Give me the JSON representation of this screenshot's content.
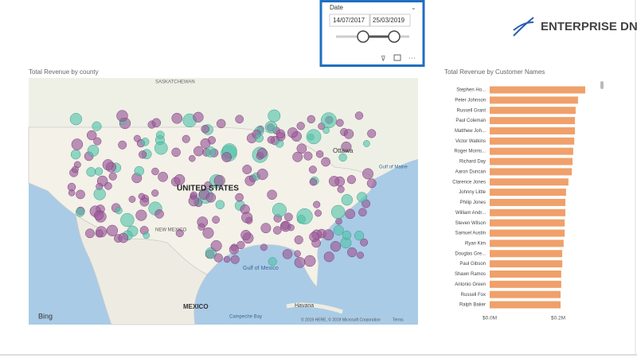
{
  "slicer": {
    "title": "Date",
    "start": "14/07/2017",
    "end": "25/03/2019"
  },
  "logo": "ENTERPRISE DNA",
  "map": {
    "title": "Total Revenue by county",
    "labels": [
      "SASKATCHEWAN",
      "Ottawa",
      "UNITED STATES",
      "NEW MEXICO",
      "MEXICO",
      "Gulf of Mexico",
      "Havana",
      "Campeche Bay",
      "Gulf of Maine"
    ],
    "brand": "Bing",
    "copyright": "© 2019 HERE, © 2019 Microsoft Corporation",
    "terms": "Terms"
  },
  "chart_data": {
    "type": "hbar",
    "title": "Total Revenue by Customer Names",
    "categories": [
      "Stephen Ho...",
      "Peter Johnson",
      "Russell Grant",
      "Paul Coleman",
      "Matthew Joh...",
      "Victor Watkins",
      "Roger Morris...",
      "Richard Day",
      "Aaron Duncan",
      "Clarence Jones",
      "Johnny Little",
      "Philip Jones",
      "William Andr...",
      "Steven Wilson",
      "Samuel Austin",
      "Ryan Kim",
      "Douglas Gre...",
      "Paul Gibson",
      "Shawn Ramos",
      "Antonio Green",
      "Russell Fox",
      "Ralph Baker"
    ],
    "values": [
      0.279,
      0.258,
      0.251,
      0.249,
      0.249,
      0.247,
      0.244,
      0.242,
      0.24,
      0.23,
      0.223,
      0.221,
      0.221,
      0.219,
      0.219,
      0.216,
      0.212,
      0.212,
      0.209,
      0.209,
      0.207,
      0.207
    ],
    "color": "#f0a06a",
    "xlim": [
      0,
      0.3
    ],
    "xticks": [
      {
        "value": 0,
        "label": "$0.0M"
      },
      {
        "value": 0.2,
        "label": "$0.2M"
      }
    ]
  }
}
